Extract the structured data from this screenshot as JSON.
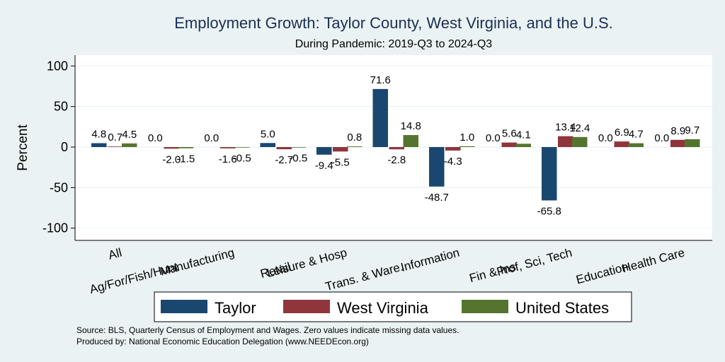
{
  "chart_data": {
    "type": "bar",
    "title": "Employment Growth: Taylor County, West Virginia, and the U.S.",
    "subtitle": "During Pandemic: 2019-Q3 to 2024-Q3",
    "ylabel": "Percent",
    "ylim": [
      -125,
      115
    ],
    "yticks": [
      -100,
      -50,
      0,
      50,
      100
    ],
    "grid": true,
    "legend_position": "bottom",
    "categories": [
      "All",
      "Ag/For/Fish/Hunt",
      "Manufacturing",
      "Retail",
      "Leisure & Hosp",
      "Trans. & Ware.",
      "Information",
      "Fin & Ins",
      "Prof, Sci, Tech",
      "Education",
      "Health Care"
    ],
    "series": [
      {
        "name": "Taylor",
        "color": "#1a476f",
        "values": [
          4.8,
          0.0,
          0.0,
          5.0,
          -9.4,
          71.6,
          -48.7,
          0.0,
          -65.8,
          0.0,
          0.0
        ]
      },
      {
        "name": "West Virginia",
        "color": "#90353b",
        "values": [
          0.7,
          -2.0,
          -1.6,
          -2.7,
          -5.5,
          -2.8,
          -4.3,
          5.6,
          13.4,
          6.9,
          8.9
        ]
      },
      {
        "name": "United States",
        "color": "#55752f",
        "values": [
          4.5,
          -1.5,
          -0.5,
          -0.5,
          0.8,
          14.8,
          1.0,
          4.1,
          12.4,
          4.7,
          9.7
        ]
      }
    ],
    "data_labels": [
      [
        "4.8",
        "0.0",
        "0.0",
        "5.0",
        "-9.4",
        "71.6",
        "-48.7",
        "0.0",
        "-65.8",
        "0.0",
        "0.0"
      ],
      [
        "0.7",
        "-2.0",
        "-1.6",
        "-2.7",
        "-5.5",
        "-2.8",
        "-4.3",
        "5.6",
        "13.4",
        "6.9",
        "8.9"
      ],
      [
        "4.5",
        "-1.5",
        "-0.5",
        "-0.5",
        "0.8",
        "14.8",
        "1.0",
        "4.1",
        "12.4",
        "4.7",
        "9.7"
      ]
    ],
    "notes": [
      "Source: BLS, Quarterly Census of Employment and Wages. Zero values indicate missing data values.",
      "Produced by: National Economic Education Delegation (www.NEEDEcon.org)"
    ]
  }
}
